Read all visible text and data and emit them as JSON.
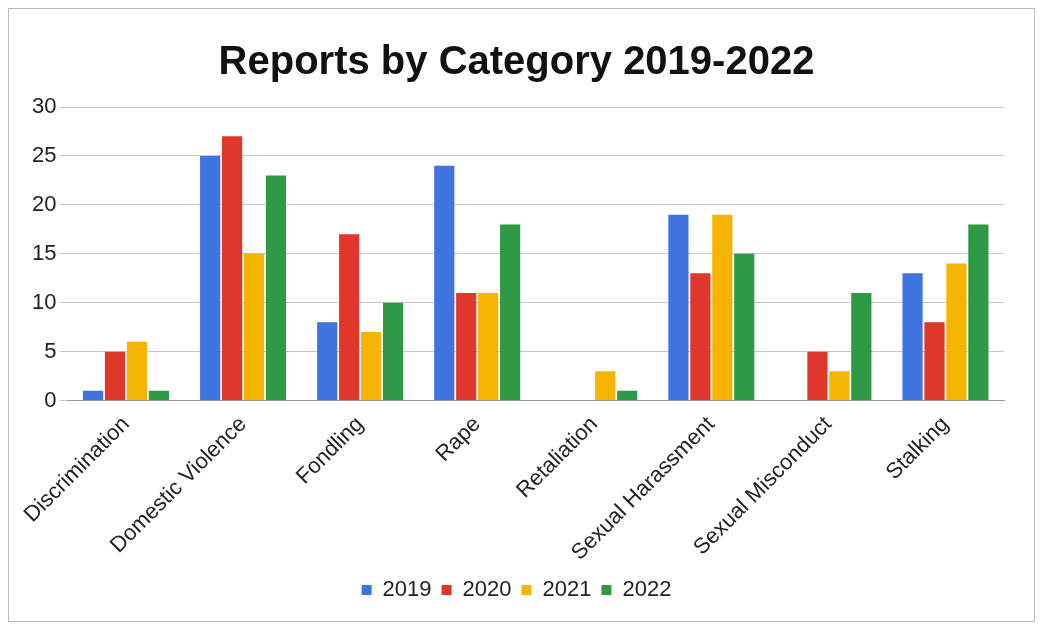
{
  "chart_data": {
    "type": "bar",
    "title": "Reports by Category 2019-2022",
    "categories": [
      "Discrimination",
      "Domestic Violence",
      "Fondling",
      "Rape",
      "Retaliation",
      "Sexual Harassment",
      "Sexual Misconduct",
      "Stalking"
    ],
    "series": [
      {
        "name": "2019",
        "color": "#3f73e0",
        "values": [
          1,
          25,
          8,
          24,
          0,
          19,
          0,
          13
        ]
      },
      {
        "name": "2020",
        "color": "#e0362c",
        "values": [
          5,
          27,
          17,
          11,
          0,
          13,
          5,
          8
        ]
      },
      {
        "name": "2021",
        "color": "#f4b400",
        "values": [
          6,
          15,
          7,
          11,
          3,
          19,
          3,
          14
        ]
      },
      {
        "name": "2022",
        "color": "#2e9a46",
        "values": [
          1,
          23,
          10,
          18,
          1,
          15,
          11,
          18
        ]
      }
    ],
    "ylim": [
      0,
      30
    ],
    "yticks": [
      0,
      5,
      10,
      15,
      20,
      25,
      30
    ],
    "grid": "y",
    "legend": "bottom"
  }
}
